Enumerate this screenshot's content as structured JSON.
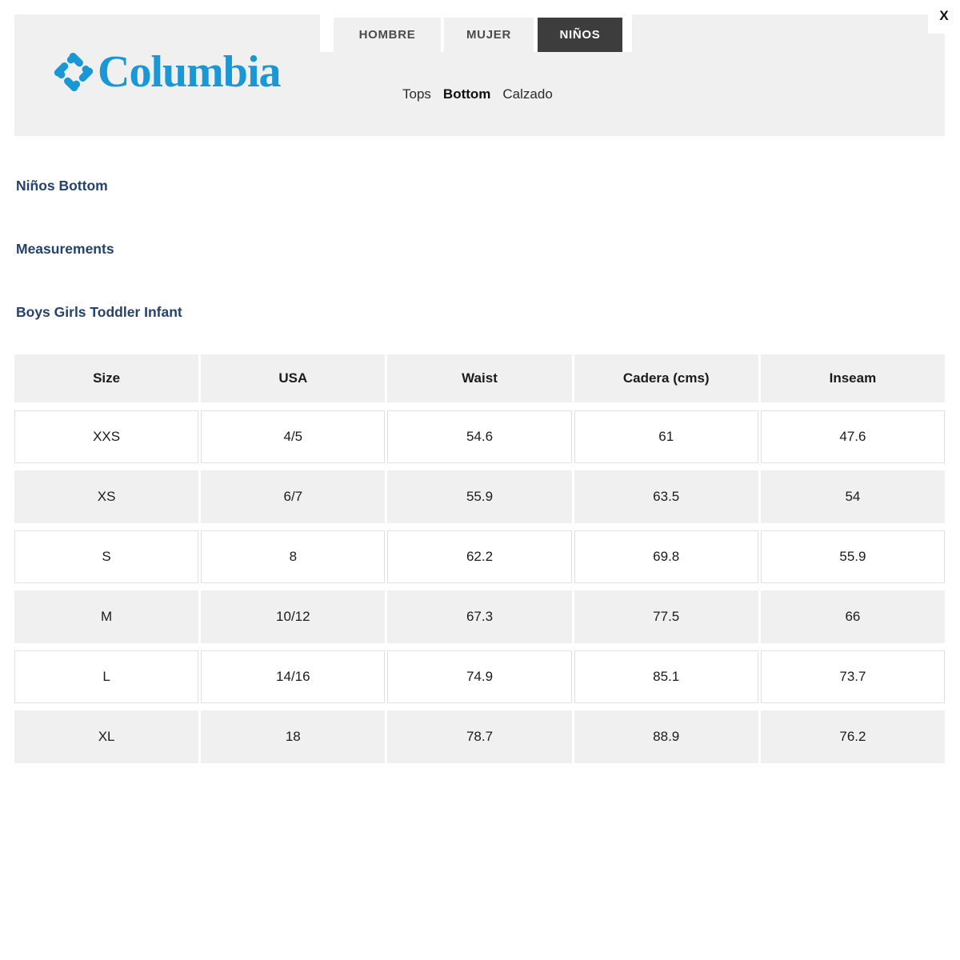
{
  "close_label": "X",
  "header": {
    "brand": "Columbia",
    "tabs": [
      {
        "label": "HOMBRE",
        "active": false
      },
      {
        "label": "MUJER",
        "active": false
      },
      {
        "label": "NIÑOS",
        "active": true
      }
    ],
    "subnav": [
      {
        "label": "Tops",
        "active": false
      },
      {
        "label": "Bottom",
        "active": true
      },
      {
        "label": "Calzado",
        "active": false
      }
    ]
  },
  "sections": {
    "title": "Niños Bottom",
    "measurements": "Measurements",
    "group": "Boys Girls Toddler Infant"
  },
  "size_chart": {
    "columns": [
      "Size",
      "USA",
      "Waist",
      "Cadera (cms)",
      "Inseam"
    ],
    "rows": [
      [
        "XXS",
        "4/5",
        "54.6",
        "61",
        "47.6"
      ],
      [
        "XS",
        "6/7",
        "55.9",
        "63.5",
        "54"
      ],
      [
        "S",
        "8",
        "62.2",
        "69.8",
        "55.9"
      ],
      [
        "M",
        "10/12",
        "67.3",
        "77.5",
        "66"
      ],
      [
        "L",
        "14/16",
        "74.9",
        "85.1",
        "73.7"
      ],
      [
        "XL",
        "18",
        "78.7",
        "88.9",
        "76.2"
      ]
    ]
  },
  "colors": {
    "brand_blue": "#1a97d5",
    "heading_navy": "#24426b",
    "panel_gray": "#f0f0f0",
    "active_tab_dark": "#3d3d3d",
    "cell_border": "#e1e1e1"
  }
}
